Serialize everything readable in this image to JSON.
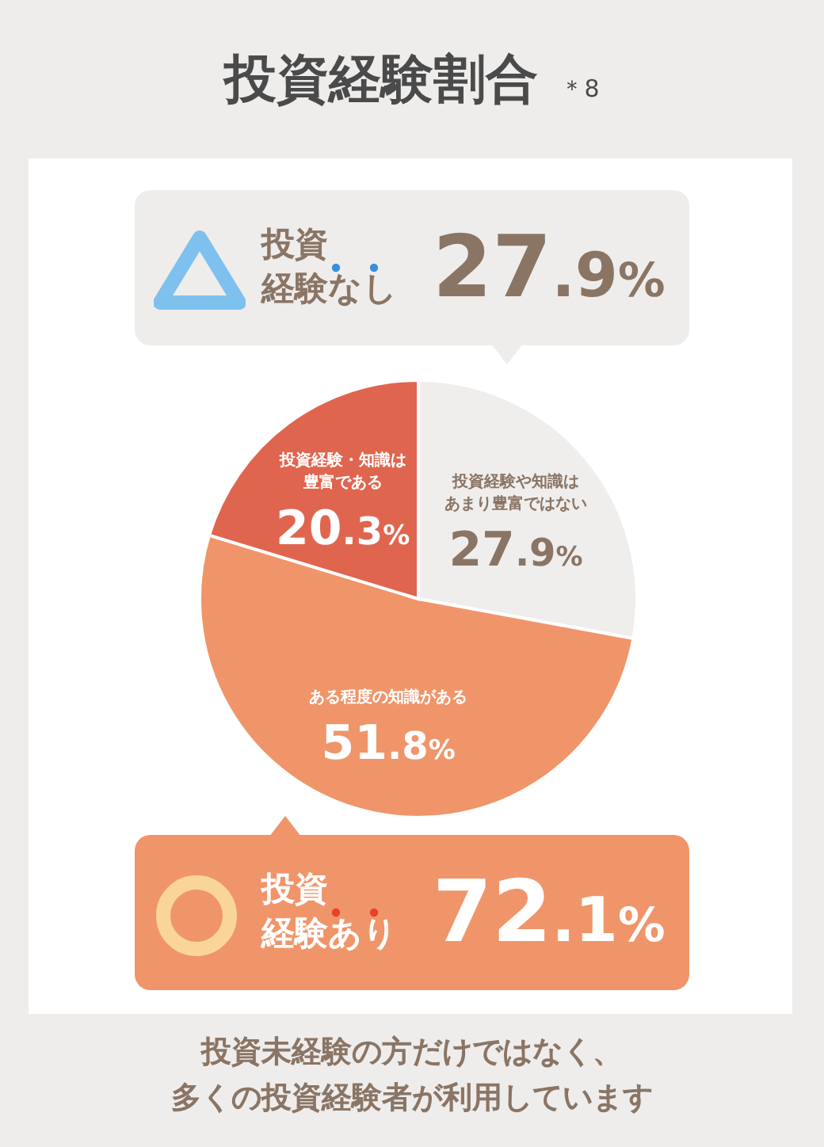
{
  "chart_data": {
    "type": "pie",
    "title": "投資経験割合",
    "categories": [
      "投資経験や知識はあまり豊富ではない",
      "ある程度の知識がある",
      "投資経験・知識は豊富である"
    ],
    "values": [
      27.9,
      51.8,
      20.3
    ],
    "colors": [
      "#f0eeec",
      "#f0956a",
      "#e0654f"
    ],
    "value_labels": [
      "27.9%",
      "51.8%",
      "20.3%"
    ],
    "legend": false,
    "annotations": [
      "＊8",
      "投資経験なし",
      "27.9%",
      "投資経験あり",
      "72.1%",
      "投資未経験の方だけではなく、多くの投資経験者が利用しています"
    ]
  }
}
